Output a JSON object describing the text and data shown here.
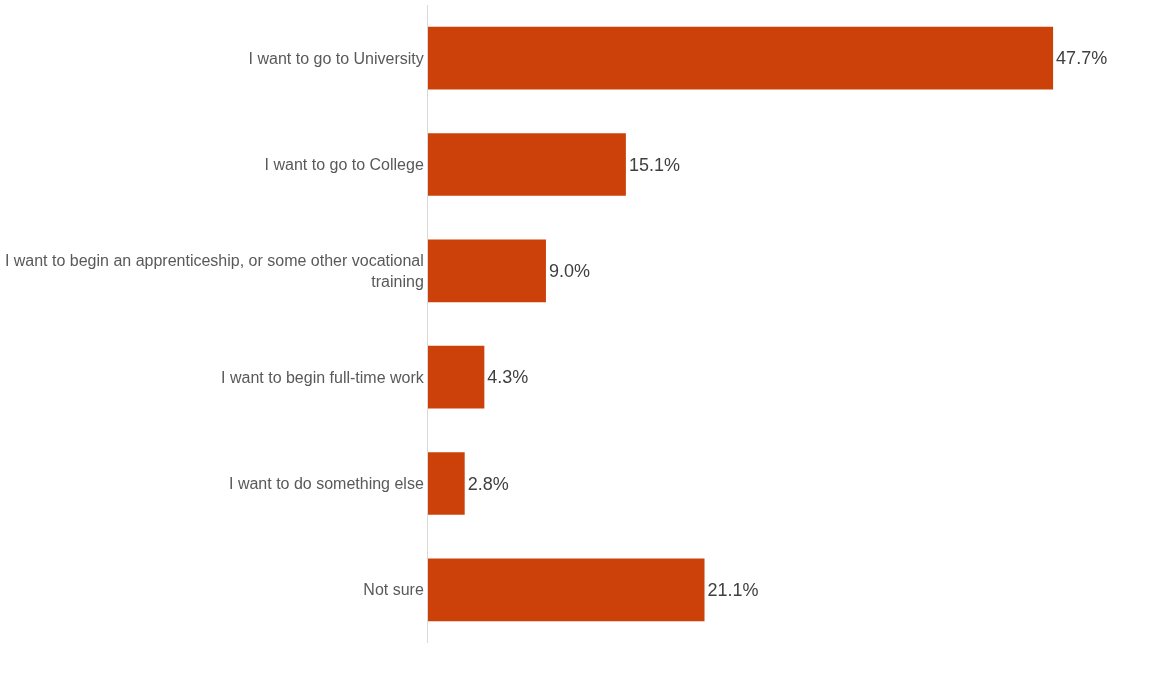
{
  "chart_data": {
    "type": "bar",
    "orientation": "horizontal",
    "categories": [
      "I want to go to University",
      "I want to go to College",
      "I want to begin an apprenticeship, or some other vocational training",
      "I want to begin full-time work",
      "I want to do something else",
      "Not sure"
    ],
    "values": [
      47.7,
      15.1,
      9.0,
      4.3,
      2.8,
      21.1
    ],
    "value_labels": [
      "47.7%",
      "15.1%",
      "9.0%",
      "4.3%",
      "2.8%",
      "21.1%"
    ],
    "color": "#cc4009",
    "grid": false,
    "legend": false
  }
}
